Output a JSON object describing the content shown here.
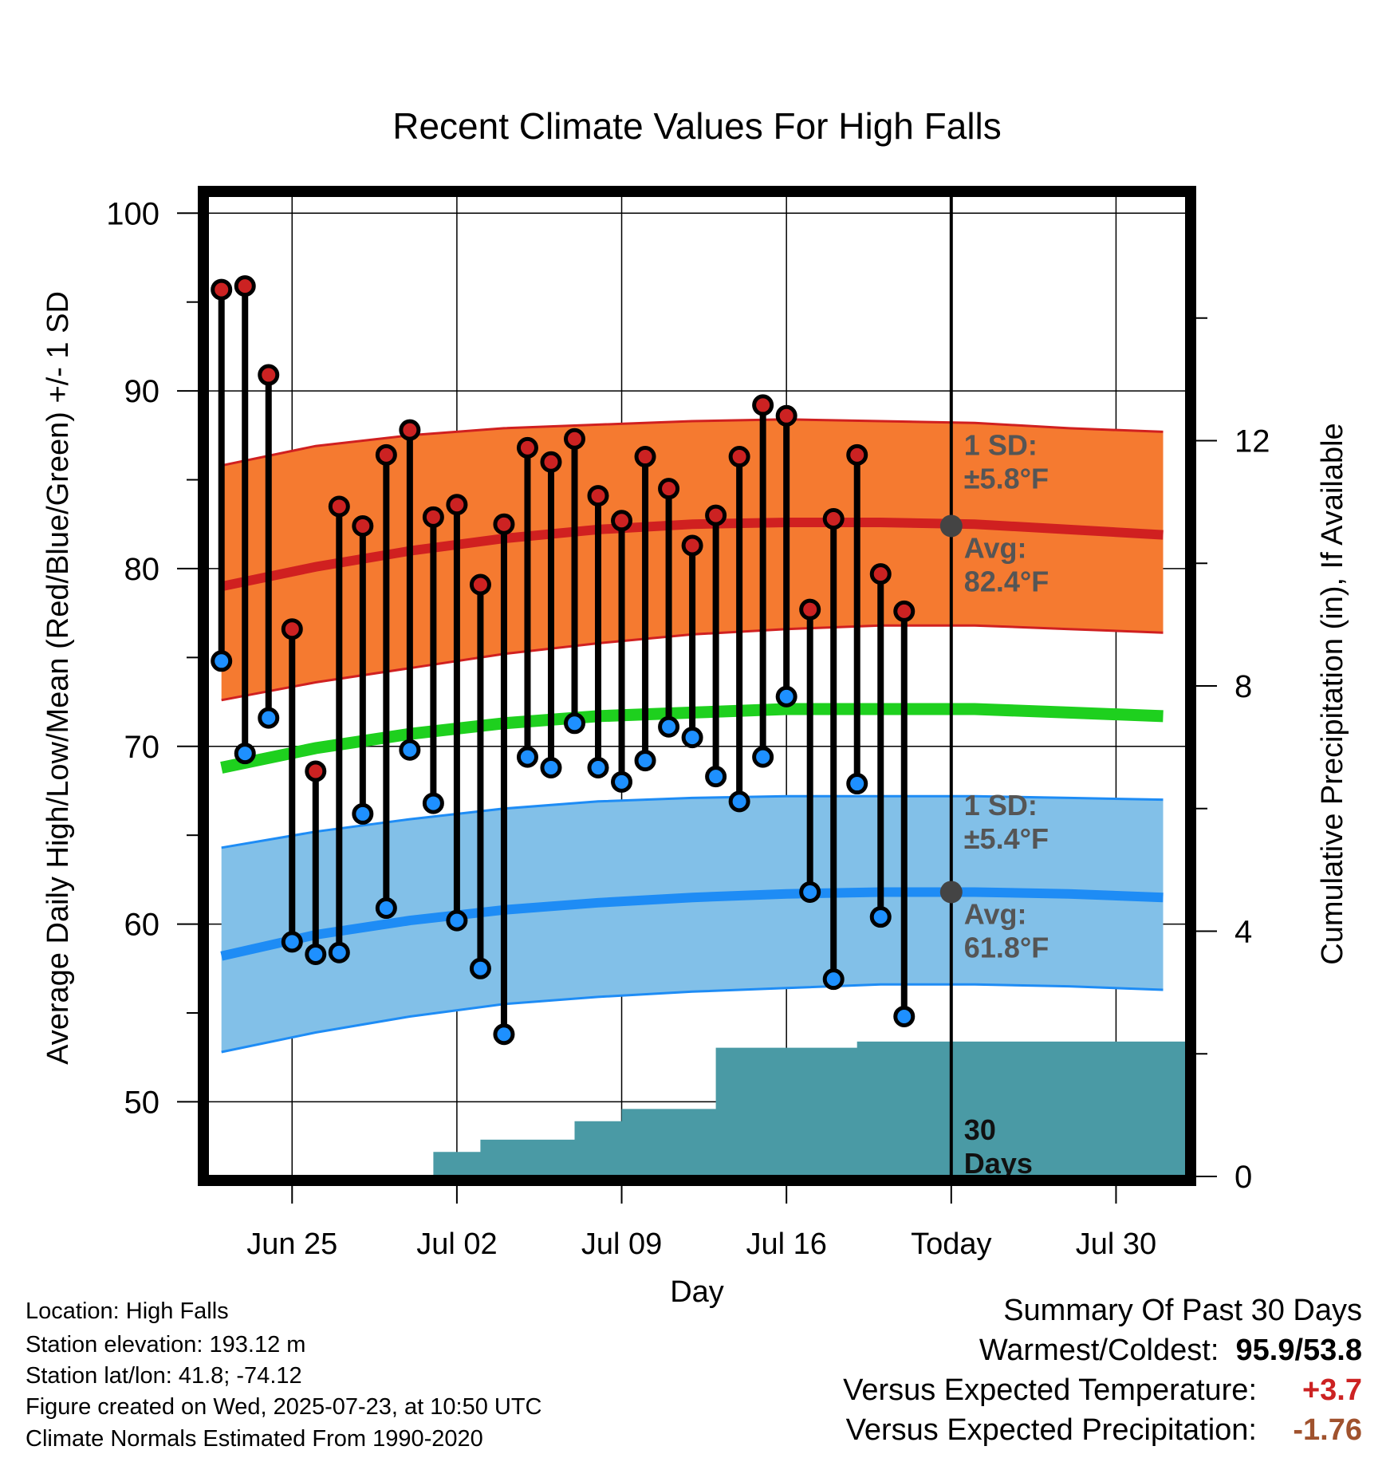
{
  "chart_data": {
    "type": "line",
    "title": "Recent Climate Values For High Falls",
    "xlabel": "Day",
    "ylabel_left": "Average Daily High/Low/Mean (Red/Blue/Green) +/- 1 SD",
    "ylabel_right": "Cumulative Precipitation (in), If Available",
    "x_tick_labels": [
      {
        "day": 3,
        "label": "Jun 25"
      },
      {
        "day": 10,
        "label": "Jul 02"
      },
      {
        "day": 17,
        "label": "Jul 09"
      },
      {
        "day": 24,
        "label": "Jul 16"
      },
      {
        "day": 31,
        "label": "Today"
      },
      {
        "day": 38,
        "label": "Jul 30"
      }
    ],
    "x_range_days": [
      -0.6,
      41.0
    ],
    "today_day": 31,
    "ylim_left": [
      45.8,
      101.0
    ],
    "yticks_left": [
      50,
      60,
      70,
      80,
      90,
      100
    ],
    "ylim_right": [
      0,
      16
    ],
    "yticks_right": [
      0,
      4,
      8,
      12
    ],
    "normals": {
      "days": [
        0,
        4,
        8,
        12,
        16,
        20,
        24,
        28,
        32,
        36,
        40
      ],
      "high_avg": [
        79.0,
        80.1,
        81.0,
        81.7,
        82.2,
        82.5,
        82.6,
        82.6,
        82.5,
        82.2,
        81.9
      ],
      "high_upper": [
        85.8,
        86.9,
        87.5,
        87.9,
        88.1,
        88.3,
        88.4,
        88.3,
        88.2,
        87.9,
        87.7
      ],
      "high_lower": [
        72.6,
        73.6,
        74.4,
        75.2,
        75.8,
        76.3,
        76.6,
        76.8,
        76.8,
        76.6,
        76.4
      ],
      "mean_avg": [
        68.8,
        69.9,
        70.7,
        71.3,
        71.7,
        71.9,
        72.1,
        72.1,
        72.1,
        71.9,
        71.7
      ],
      "low_avg": [
        58.2,
        59.4,
        60.2,
        60.8,
        61.2,
        61.5,
        61.7,
        61.8,
        61.8,
        61.7,
        61.5
      ],
      "low_upper": [
        64.3,
        65.2,
        65.9,
        66.5,
        66.9,
        67.1,
        67.2,
        67.2,
        67.2,
        67.1,
        67.0
      ],
      "low_lower": [
        52.8,
        53.9,
        54.8,
        55.5,
        55.9,
        56.2,
        56.4,
        56.6,
        56.6,
        56.5,
        56.3
      ]
    },
    "observations": {
      "days": [
        0,
        1,
        2,
        3,
        4,
        5,
        6,
        7,
        8,
        9,
        10,
        11,
        12,
        13,
        14,
        15,
        16,
        17,
        18,
        19,
        20,
        21,
        22,
        23,
        24,
        25,
        26,
        27,
        28,
        29
      ],
      "high": [
        95.7,
        95.9,
        90.9,
        76.6,
        68.6,
        83.5,
        82.4,
        86.4,
        87.8,
        82.9,
        83.6,
        79.1,
        82.5,
        86.8,
        86.0,
        87.3,
        84.1,
        82.7,
        86.3,
        84.5,
        81.3,
        83.0,
        86.3,
        89.2,
        88.6,
        77.7,
        82.8,
        86.4,
        79.7,
        77.6
      ],
      "low": [
        74.8,
        69.6,
        71.6,
        59.0,
        58.3,
        58.4,
        66.2,
        60.9,
        69.8,
        66.8,
        60.2,
        57.5,
        53.8,
        69.4,
        68.8,
        71.3,
        68.8,
        68.0,
        69.2,
        71.1,
        70.5,
        68.3,
        66.9,
        69.4,
        72.8,
        61.8,
        56.9,
        67.9,
        60.4,
        54.8
      ]
    },
    "precipitation": {
      "days": [
        8,
        9,
        10,
        11,
        12,
        13,
        14,
        15,
        16,
        17,
        18,
        19,
        20,
        21,
        22,
        23,
        24,
        25,
        26,
        27,
        28,
        29,
        30,
        31,
        41
      ],
      "cumulative": [
        0.0,
        0.4,
        0.4,
        0.6,
        0.6,
        0.6,
        0.6,
        0.9,
        0.9,
        1.1,
        1.1,
        1.1,
        1.1,
        2.1,
        2.1,
        2.1,
        2.1,
        2.1,
        2.1,
        2.2,
        2.2,
        2.2,
        2.2,
        2.2,
        2.2
      ]
    },
    "annotations": {
      "high_sd": "1 SD:",
      "high_sd_value": "±5.8°F",
      "high_avg_label": "Avg:",
      "high_avg_value": "82.4°F",
      "low_sd": "1 SD:",
      "low_sd_value": "±5.4°F",
      "low_avg_label": "Avg:",
      "low_avg_value": "61.8°F",
      "precip_line1": "30",
      "precip_line2": "Days",
      "today_high_avg": 82.4,
      "today_low_avg": 61.8
    },
    "colors": {
      "high_band": "#f57a30",
      "high_line": "#d02020",
      "low_band": "#82c0e8",
      "low_line": "#1e8cf5",
      "mean_line": "#1ed01e",
      "precip_fill": "#4a9aa5",
      "high_dot": "#cc2222",
      "low_dot": "#1e90ff",
      "annotation_text": "#555555",
      "today_dot": "#444444"
    }
  },
  "info": {
    "location": "Location: High Falls",
    "elevation": "Station elevation: 193.12 m",
    "latlon": "Station lat/lon: 41.8; -74.12",
    "created": "Figure created on Wed, 2025-07-23, at 10:50 UTC",
    "normals": "Climate Normals Estimated From 1990-2020"
  },
  "summary": {
    "heading": "Summary Of Past 30 Days",
    "warm_cold_label": "Warmest/Coldest:",
    "warm_cold_value": "95.9/53.8",
    "temp_label": "Versus Expected Temperature:",
    "temp_value": "+3.7",
    "temp_color": "#cc2222",
    "precip_label": "Versus Expected Precipitation:",
    "precip_value": "-1.76",
    "precip_color": "#a0522d"
  }
}
